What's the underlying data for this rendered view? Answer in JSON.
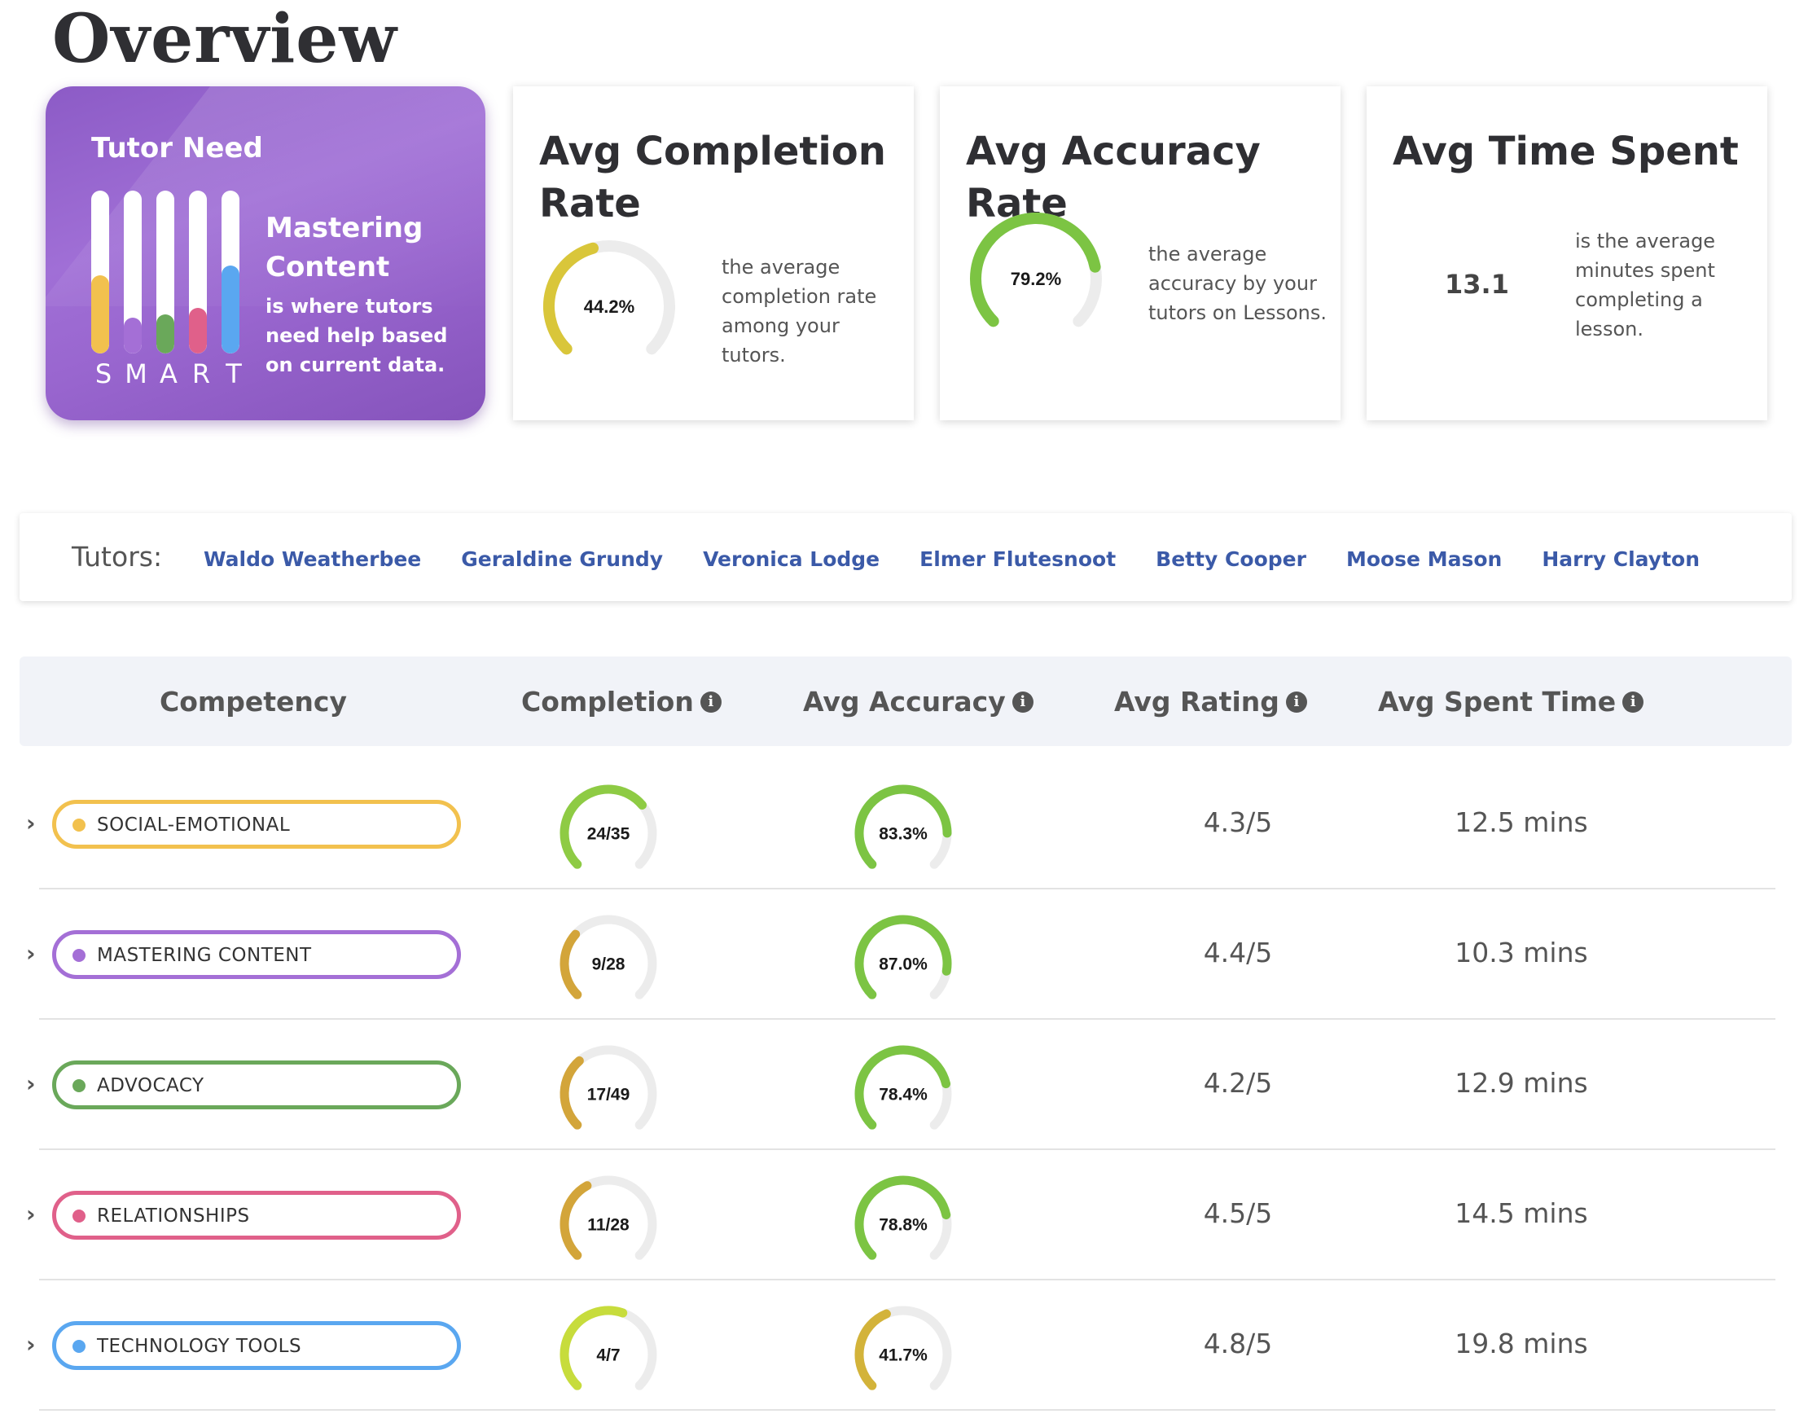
{
  "page": {
    "title": "Overview"
  },
  "tutor_need": {
    "title": "Tutor Need",
    "focus": "Mastering Content",
    "description": "is where tutors need help based on current data.",
    "smart_letters": [
      "S",
      "M",
      "A",
      "R",
      "T"
    ],
    "bars": [
      {
        "color": "#f2c14e",
        "level": 0.48
      },
      {
        "color": "#a46fd6",
        "level": 0.22
      },
      {
        "color": "#6aa85a",
        "level": 0.24
      },
      {
        "color": "#e0608a",
        "level": 0.28
      },
      {
        "color": "#5aa7f0",
        "level": 0.54
      }
    ]
  },
  "stats": [
    {
      "title": "Avg Completion Rate",
      "value": "44.2%",
      "fraction": 0.442,
      "color": "#d9c63a",
      "description": "the average completion rate among your tutors."
    },
    {
      "title": "Avg Accuracy Rate",
      "value": "79.2%",
      "fraction": 0.792,
      "color": "#7cc443",
      "description": "the average accuracy by your tutors on Lessons."
    },
    {
      "title": "Avg Time Spent",
      "value": "13.1",
      "description": "is the average minutes spent completing a lesson."
    }
  ],
  "tutors": {
    "label": "Tutors:",
    "names": [
      "Waldo Weatherbee",
      "Geraldine Grundy",
      "Veronica Lodge",
      "Elmer Flutesnoot",
      "Betty Cooper",
      "Moose Mason",
      "Harry Clayton"
    ]
  },
  "table": {
    "headers": {
      "competency": "Competency",
      "completion": "Completion",
      "accuracy": "Avg Accuracy",
      "rating": "Avg Rating",
      "spent": "Avg Spent Time"
    },
    "info_icon": "info-icon",
    "rows": [
      {
        "name": "SOCIAL-EMOTIONAL",
        "color": "#f2c14e",
        "completion": "24/35",
        "completion_fraction": 0.686,
        "completion_color": "#8ecb44",
        "accuracy": "83.3%",
        "accuracy_fraction": 0.833,
        "accuracy_color": "#7cc443",
        "rating": "4.3/5",
        "spent": "12.5 mins"
      },
      {
        "name": "MASTERING CONTENT",
        "color": "#a46fd6",
        "completion": "9/28",
        "completion_fraction": 0.321,
        "completion_color": "#d3a53a",
        "accuracy": "87.0%",
        "accuracy_fraction": 0.87,
        "accuracy_color": "#7cc443",
        "rating": "4.4/5",
        "spent": "10.3 mins"
      },
      {
        "name": "ADVOCACY",
        "color": "#6aa85a",
        "completion": "17/49",
        "completion_fraction": 0.347,
        "completion_color": "#d3a53a",
        "accuracy": "78.4%",
        "accuracy_fraction": 0.784,
        "accuracy_color": "#7cc443",
        "rating": "4.2/5",
        "spent": "12.9 mins"
      },
      {
        "name": "RELATIONSHIPS",
        "color": "#e0608a",
        "completion": "11/28",
        "completion_fraction": 0.393,
        "completion_color": "#d3a53a",
        "accuracy": "78.8%",
        "accuracy_fraction": 0.788,
        "accuracy_color": "#7cc443",
        "rating": "4.5/5",
        "spent": "14.5 mins"
      },
      {
        "name": "TECHNOLOGY TOOLS",
        "color": "#5aa7f0",
        "completion": "4/7",
        "completion_fraction": 0.571,
        "completion_color": "#c7dc3c",
        "accuracy": "41.7%",
        "accuracy_fraction": 0.417,
        "accuracy_color": "#d3b33a",
        "rating": "4.8/5",
        "spent": "19.8 mins"
      }
    ]
  }
}
